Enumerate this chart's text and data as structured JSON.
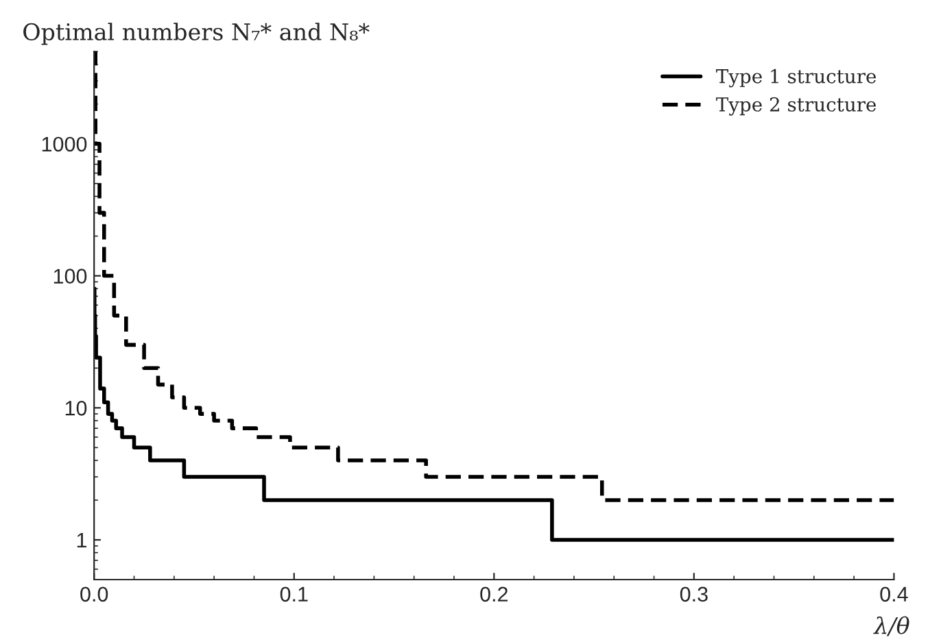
{
  "chart_data": {
    "type": "step",
    "title": "Optimal numbers N₇* and N₈*",
    "xlabel": "λ/θ",
    "log": "y",
    "xlim": [
      0,
      0.4
    ],
    "xticks": [
      {
        "value": 0,
        "label": "0.0"
      },
      0.1,
      0.2,
      0.3,
      0.4
    ],
    "ylim": [
      0.5,
      5000
    ],
    "yticks": [
      1,
      10,
      100,
      1000
    ],
    "legend": "top right",
    "grid": false,
    "series": [
      {
        "name": "Type 1 structure",
        "color": "#000000",
        "line_style": "solid",
        "x": [
          0,
          0.0002,
          0.0005,
          0.001,
          0.003,
          0.005,
          0.007,
          0.009,
          0.011,
          0.014,
          0.02,
          0.028,
          0.045,
          0.085,
          0.229,
          0.4
        ],
        "values": [
          80,
          50,
          35,
          24,
          14,
          11,
          9,
          8,
          7,
          6,
          5,
          4,
          3,
          2,
          1,
          1
        ]
      },
      {
        "name": "Type 2 structure",
        "color": "#000000",
        "line_style": "dashed",
        "x": [
          0,
          0.0007,
          0.0027,
          0.005,
          0.01,
          0.016,
          0.025,
          0.032,
          0.039,
          0.045,
          0.053,
          0.06,
          0.069,
          0.081,
          0.098,
          0.122,
          0.166,
          0.254,
          0.4
        ],
        "values": [
          5000,
          1000,
          300,
          100,
          50,
          30,
          20,
          15,
          12,
          10,
          9,
          8,
          7,
          6,
          5,
          4,
          3,
          2,
          2
        ]
      }
    ]
  }
}
